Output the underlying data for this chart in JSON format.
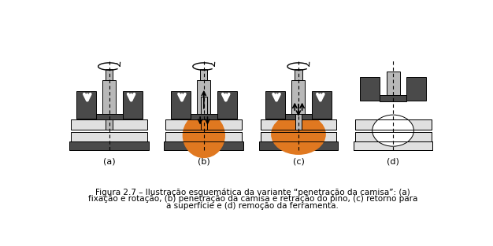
{
  "bg_color": "#ffffff",
  "dark_gray": "#4a4a4a",
  "mid_gray": "#7a7a7a",
  "light_gray": "#b8b8b8",
  "very_light_gray": "#e0e0e0",
  "orange": "#e07820",
  "white": "#ffffff",
  "black": "#000000",
  "caption_line1": "Figura 2.7 – Ilustração esquemática da variante “penetração da camisa”: (a)",
  "caption_line2": "fixação e rotação, (b) penetração da camisa e retração do pino, (c) retorno para",
  "caption_line3": "a superfície e (d) remoção da ferramenta.",
  "labels": [
    "(a)",
    "(b)",
    "(c)",
    "(d)"
  ],
  "label_fontsize": 8,
  "caption_fontsize": 7.5,
  "centers": [
    78,
    233,
    388,
    543
  ],
  "fig_w": 6.26,
  "fig_h": 3.13,
  "dpi": 100
}
